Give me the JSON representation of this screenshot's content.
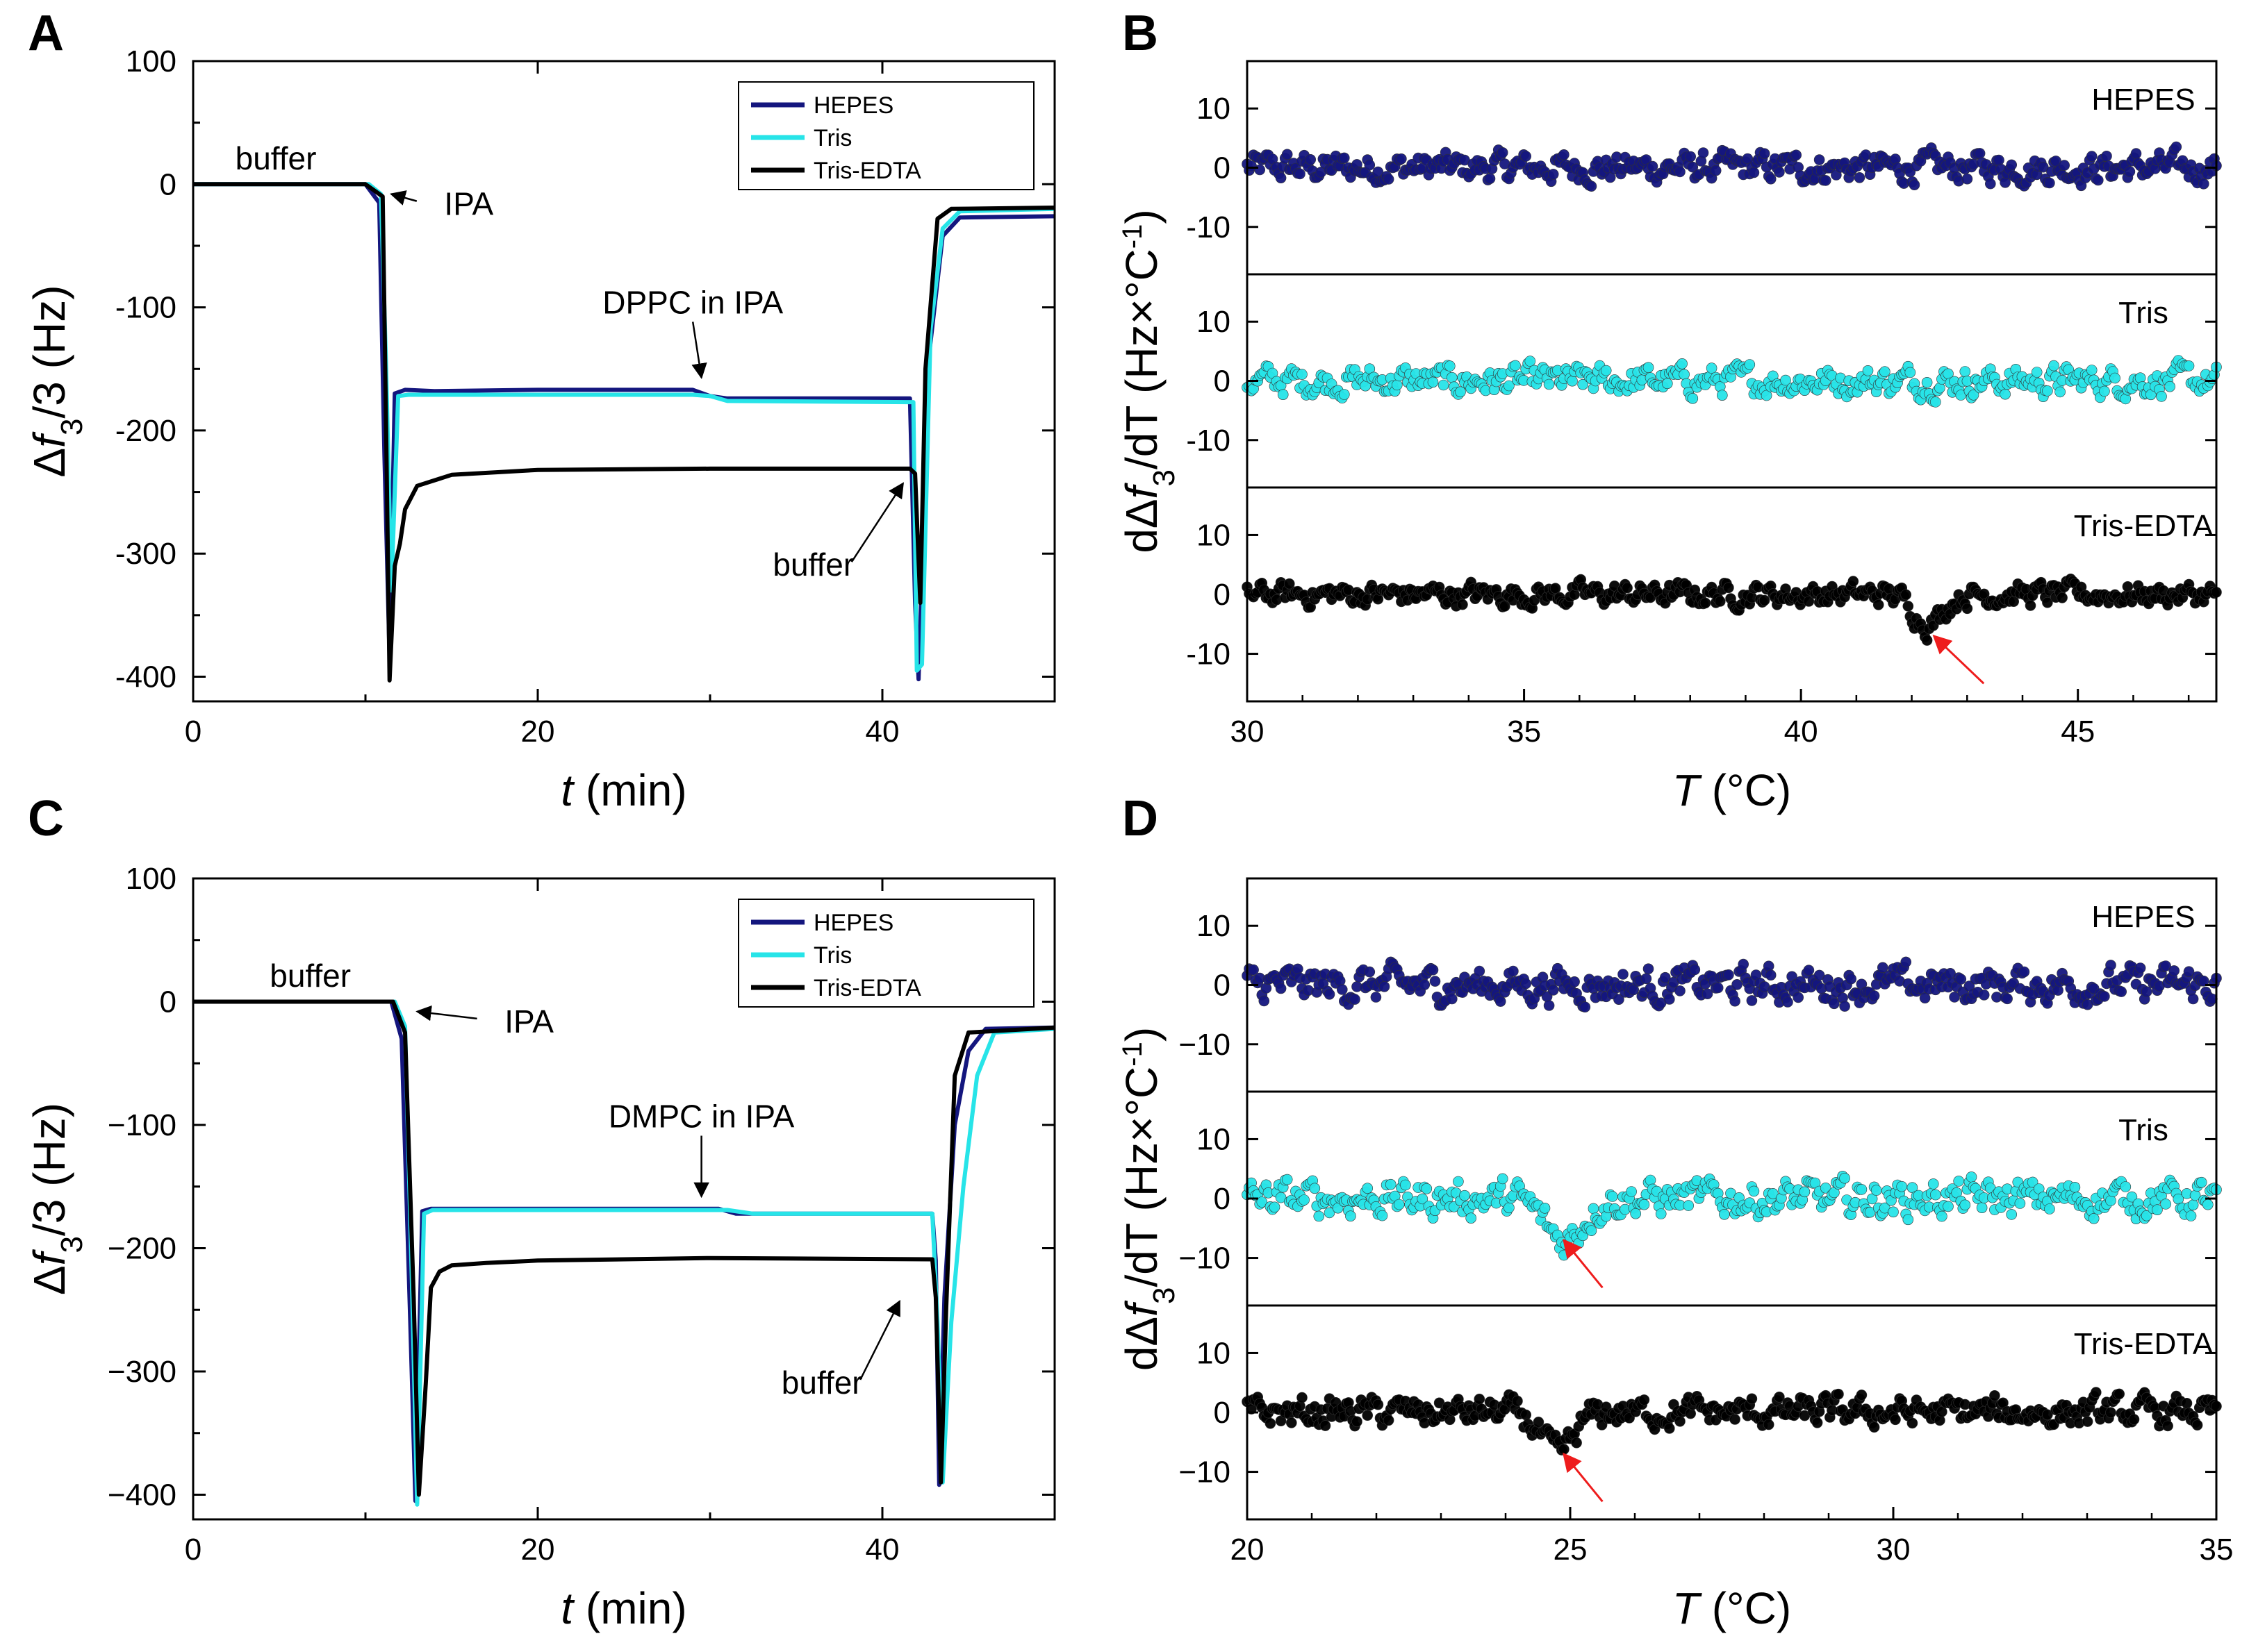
{
  "colors": {
    "hepes": "#14167e",
    "tris": "#27e4e8",
    "tris_edta": "#000000",
    "arrow_red": "#ee1c1c",
    "axis": "#000000"
  },
  "chart_data": [
    {
      "panel": "A",
      "type": "line",
      "xlabel_italic": "t",
      "xlabel_rest": " (min)",
      "ylabel_main": "Δ",
      "ylabel_italic": "f",
      "ylabel_sub": "3",
      "ylabel_rest": "/3 (Hz)",
      "xlim": [
        0,
        50
      ],
      "ylim": [
        -420,
        100
      ],
      "xticks": [
        0,
        20,
        40
      ],
      "xtick_labels": [
        "0",
        "20",
        "40"
      ],
      "yticks": [
        100,
        0,
        -100,
        -200,
        -300,
        -400
      ],
      "ytick_labels": [
        "100",
        "0",
        "-100",
        "-200",
        "-300",
        "-400"
      ],
      "legend": [
        "HEPES",
        "Tris",
        "Tris-EDTA"
      ],
      "legend_position": "top-right",
      "annotations": [
        {
          "text": "buffer",
          "x": 4.8,
          "y": 12
        },
        {
          "text": "IPA",
          "x": 16,
          "y": -25,
          "arrow_to": [
            11.5,
            -8
          ]
        },
        {
          "text": "DPPC in IPA",
          "x": 29,
          "y": -105,
          "arrow_to": [
            29.5,
            -157
          ]
        },
        {
          "text": "buffer",
          "x": 36,
          "y": -318,
          "arrow_to": [
            41.2,
            -243
          ]
        }
      ],
      "series": [
        {
          "name": "HEPES",
          "x": [
            0,
            10,
            10.8,
            11.1,
            11.4,
            11.7,
            12.3,
            14,
            20,
            29,
            30,
            31,
            41.6,
            41.9,
            42.1,
            42.7,
            43.5,
            44.5,
            50
          ],
          "y": [
            0,
            0,
            -15,
            -220,
            -385,
            -170,
            -167,
            -168,
            -167,
            -167,
            -172,
            -174,
            -174,
            -340,
            -402,
            -140,
            -42,
            -27,
            -26
          ]
        },
        {
          "name": "Tris",
          "x": [
            0,
            10.2,
            10.9,
            11.2,
            11.5,
            11.9,
            12.5,
            20,
            29,
            30,
            31,
            41.5,
            41.8,
            42.0,
            42.3,
            42.8,
            43.5,
            44.5,
            50
          ],
          "y": [
            0,
            0,
            -8,
            -150,
            -330,
            -172,
            -171,
            -171,
            -171,
            -172,
            -176,
            -177,
            -177,
            -395,
            -390,
            -118,
            -36,
            -22,
            -20
          ]
        },
        {
          "name": "Tris-EDTA",
          "x": [
            0,
            10,
            11.0,
            11.2,
            11.4,
            11.7,
            12,
            12.3,
            13,
            15,
            20,
            30,
            41.6,
            41.9,
            42.2,
            42.5,
            43.2,
            44,
            50
          ],
          "y": [
            0,
            0,
            -10,
            -200,
            -403,
            -310,
            -292,
            -264,
            -245,
            -236,
            -232,
            -231,
            -231,
            -235,
            -340,
            -150,
            -28,
            -20,
            -19
          ]
        }
      ]
    },
    {
      "panel": "B",
      "type": "scatter",
      "xlabel_italic": "T",
      "xlabel_rest": " (°C)",
      "ylabel_pre": "dΔ",
      "ylabel_italic": "f",
      "ylabel_sub": "3",
      "ylabel_rest": "/dT (Hz×°C",
      "ylabel_sup": "-1",
      "ylabel_close": ")",
      "xlim": [
        30,
        47.5
      ],
      "xticks": [
        30,
        35,
        40,
        45
      ],
      "xtick_labels": [
        "30",
        "35",
        "40",
        "45"
      ],
      "ylim": [
        -18,
        18
      ],
      "yticks": [
        10,
        0,
        -10
      ],
      "ytick_labels": [
        "10",
        "0",
        "-10"
      ],
      "subplots": [
        {
          "label": "HEPES",
          "series": "HEPES",
          "noise_amplitude": 2.5,
          "dips": []
        },
        {
          "label": "Tris",
          "series": "Tris",
          "noise_amplitude": 2.5,
          "dips": []
        },
        {
          "label": "Tris-EDTA",
          "series": "Tris-EDTA",
          "noise_amplitude": 2.0,
          "dips": [
            {
              "x": 42.3,
              "depth": -5,
              "width": 0.35
            }
          ],
          "arrow_from": [
            43.3,
            -15
          ],
          "arrow_to": [
            42.4,
            -7
          ]
        }
      ]
    },
    {
      "panel": "C",
      "type": "line",
      "xlabel_italic": "t",
      "xlabel_rest": " (min)",
      "ylabel_main": "Δ",
      "ylabel_italic": "f",
      "ylabel_sub": "3",
      "ylabel_rest": "/3 (Hz)",
      "xlim": [
        0,
        50
      ],
      "ylim": [
        -420,
        100
      ],
      "xticks": [
        0,
        20,
        40
      ],
      "xtick_labels": [
        "0",
        "20",
        "40"
      ],
      "yticks": [
        100,
        0,
        -100,
        -200,
        -300,
        -400
      ],
      "ytick_labels": [
        "100",
        "0",
        "−100",
        "−200",
        "−300",
        "−400"
      ],
      "legend": [
        "HEPES",
        "Tris",
        "Tris-EDTA"
      ],
      "legend_position": "top-right",
      "annotations": [
        {
          "text": "buffer",
          "x": 6.8,
          "y": 12
        },
        {
          "text": "IPA",
          "x": 19.5,
          "y": -25,
          "arrow_to": [
            13,
            -8
          ]
        },
        {
          "text": "DMPC in IPA",
          "x": 29.5,
          "y": -102,
          "arrow_to": [
            29.5,
            -158
          ]
        },
        {
          "text": "buffer",
          "x": 36.5,
          "y": -318,
          "arrow_to": [
            41,
            -243
          ]
        }
      ],
      "series": [
        {
          "name": "HEPES",
          "x": [
            0,
            11.5,
            12.1,
            12.6,
            12.9,
            13.3,
            13.8,
            15,
            20,
            30.5,
            31.5,
            40,
            42.9,
            43.1,
            43.3,
            43.6,
            44.2,
            45,
            46,
            50
          ],
          "y": [
            0,
            0,
            -30,
            -260,
            -405,
            -170,
            -168,
            -168,
            -168,
            -168,
            -172,
            -172,
            -172,
            -210,
            -392,
            -240,
            -100,
            -40,
            -22,
            -21
          ]
        },
        {
          "name": "Tris",
          "x": [
            0,
            11.7,
            12.3,
            12.7,
            13.0,
            13.4,
            13.9,
            15,
            20,
            31,
            32.5,
            40,
            42.9,
            43.2,
            43.5,
            44,
            44.7,
            45.5,
            46.5,
            50
          ],
          "y": [
            0,
            0,
            -20,
            -230,
            -408,
            -172,
            -169,
            -169,
            -169,
            -169,
            -172,
            -172,
            -172,
            -260,
            -390,
            -260,
            -150,
            -60,
            -25,
            -22
          ]
        },
        {
          "name": "Tris-EDTA",
          "x": [
            0,
            11.6,
            12.3,
            12.8,
            13.1,
            13.5,
            13.8,
            14.3,
            15,
            17,
            20,
            30,
            42.9,
            43.1,
            43.4,
            43.7,
            44.2,
            45,
            50
          ],
          "y": [
            0,
            0,
            -25,
            -240,
            -400,
            -310,
            -232,
            -219,
            -214,
            -212,
            -210,
            -208,
            -209,
            -240,
            -390,
            -250,
            -60,
            -25,
            -21
          ]
        }
      ]
    },
    {
      "panel": "D",
      "type": "scatter",
      "xlabel_italic": "T",
      "xlabel_rest": " (°C)",
      "ylabel_pre": "dΔ",
      "ylabel_italic": "f",
      "ylabel_sub": "3",
      "ylabel_rest": "/dT (Hz×°C",
      "ylabel_sup": "-1",
      "ylabel_close": ")",
      "xlim": [
        20,
        35
      ],
      "xticks": [
        20,
        25,
        30,
        35
      ],
      "xtick_labels": [
        "20",
        "25",
        "30",
        "35"
      ],
      "ylim": [
        -18,
        18
      ],
      "yticks": [
        10,
        0,
        -10
      ],
      "ytick_labels": [
        "10",
        "0",
        "−10"
      ],
      "subplots": [
        {
          "label": "HEPES",
          "series": "HEPES",
          "noise_amplitude": 3.0,
          "dips": []
        },
        {
          "label": "Tris",
          "series": "Tris",
          "noise_amplitude": 3.0,
          "dips": [
            {
              "x": 24.9,
              "depth": -7,
              "width": 0.4
            }
          ],
          "arrow_from": [
            25.5,
            -15
          ],
          "arrow_to": [
            24.9,
            -7
          ]
        },
        {
          "label": "Tris-EDTA",
          "series": "Tris-EDTA",
          "noise_amplitude": 2.5,
          "dips": [
            {
              "x": 24.8,
              "depth": -7,
              "width": 0.35
            }
          ],
          "arrow_from": [
            25.5,
            -15
          ],
          "arrow_to": [
            24.9,
            -7
          ]
        }
      ]
    }
  ]
}
